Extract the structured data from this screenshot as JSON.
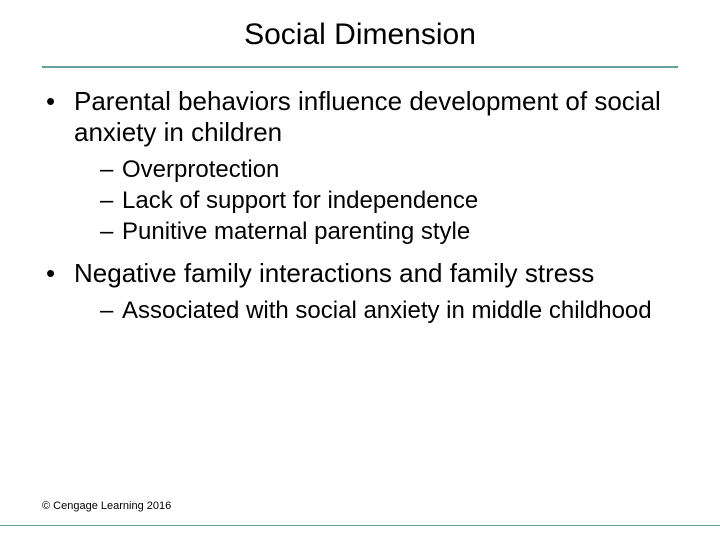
{
  "colors": {
    "background": "#ffffff",
    "text": "#000000",
    "divider": "#6aa0a0"
  },
  "typography": {
    "family": "Arial",
    "title_size_pt": 30,
    "l1_size_pt": 26,
    "l2_size_pt": 24,
    "footer_size_pt": 11
  },
  "title": "Social Dimension",
  "bullets": [
    {
      "text": "Parental behaviors influence development of social anxiety in children",
      "sub": [
        "Overprotection",
        "Lack of support for independence",
        "Punitive maternal parenting style"
      ]
    },
    {
      "text": "Negative family interactions and family stress",
      "sub": [
        "Associated with social anxiety in middle childhood"
      ]
    }
  ],
  "footer": "© Cengage Learning 2016"
}
